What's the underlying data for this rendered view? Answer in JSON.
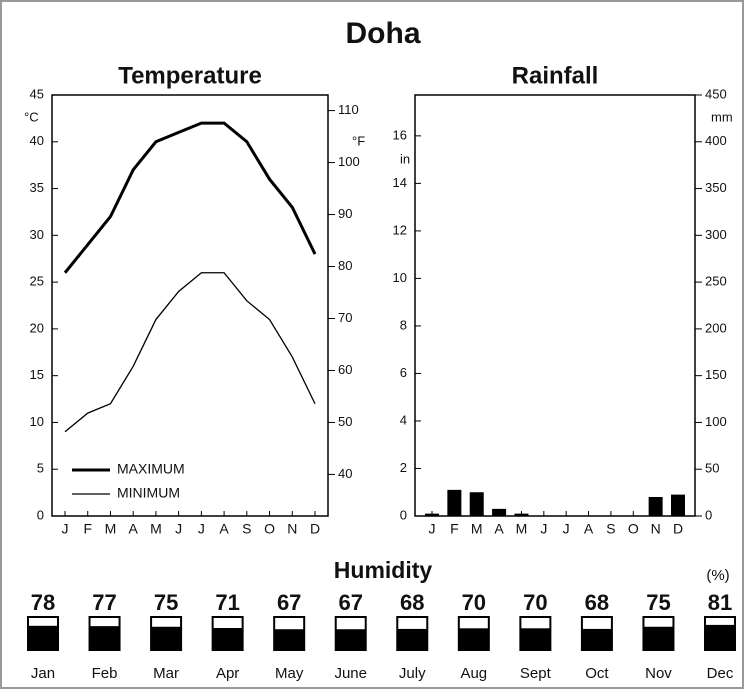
{
  "title": "Doha",
  "chart_data": [
    {
      "type": "line",
      "title": "Temperature",
      "ylabel": "°C",
      "y2label": "°F",
      "categories": [
        "J",
        "F",
        "M",
        "A",
        "M",
        "J",
        "J",
        "A",
        "S",
        "O",
        "N",
        "D"
      ],
      "series": [
        {
          "name": "MAXIMUM",
          "color": "#000000",
          "width": 3,
          "values": [
            26,
            29,
            32,
            37,
            40,
            41,
            42,
            42,
            40,
            36,
            33,
            28
          ]
        },
        {
          "name": "MINIMUM",
          "color": "#000000",
          "width": 1.3,
          "values": [
            9,
            11,
            12,
            16,
            21,
            24,
            26,
            26,
            23,
            21,
            17,
            12
          ]
        }
      ],
      "ylim": [
        0,
        45
      ],
      "yticks": [
        0,
        5,
        10,
        15,
        20,
        25,
        30,
        35,
        40,
        45
      ],
      "y2lim": [
        32,
        113
      ],
      "y2ticks": [
        40,
        50,
        60,
        70,
        80,
        90,
        100,
        110
      ],
      "legend": "lower-left"
    },
    {
      "type": "bar",
      "title": "Rainfall",
      "ylabel": "in",
      "y2label": "mm",
      "categories": [
        "J",
        "F",
        "M",
        "A",
        "M",
        "J",
        "J",
        "A",
        "S",
        "O",
        "N",
        "D"
      ],
      "series": [
        {
          "color": "#000000",
          "axis": "y2",
          "values": [
            0.1,
            1.1,
            1.0,
            0.3,
            0.1,
            0,
            0,
            0,
            0,
            0,
            0.8,
            0.9
          ]
        }
      ],
      "ylim": [
        0,
        450
      ],
      "yticks": [
        0,
        50,
        100,
        150,
        200,
        250,
        300,
        350,
        400,
        450
      ],
      "y2lim": [
        0,
        17.72
      ],
      "y2ticks": [
        0,
        2,
        4,
        6,
        8,
        10,
        12,
        14,
        16
      ]
    },
    {
      "type": "gauge",
      "title": "Humidity",
      "unit": "(%)",
      "categories": [
        "Jan",
        "Feb",
        "Mar",
        "Apr",
        "May",
        "June",
        "July",
        "Aug",
        "Sept",
        "Oct",
        "Nov",
        "Dec"
      ],
      "values": [
        78,
        77,
        75,
        71,
        67,
        67,
        68,
        70,
        70,
        68,
        75,
        81
      ],
      "ylim": [
        0,
        100
      ],
      "color": "#000000"
    }
  ]
}
